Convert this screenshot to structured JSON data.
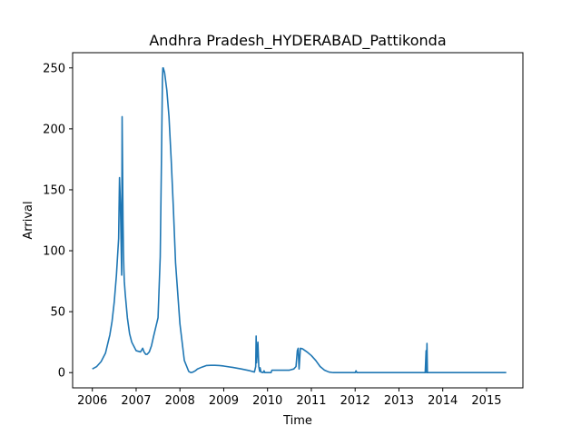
{
  "chart_data": {
    "type": "line",
    "title": "Andhra Pradesh_HYDERABAD_Pattikonda",
    "xlabel": "Time",
    "ylabel": "Arrival",
    "x_ticks": [
      "2006",
      "2007",
      "2008",
      "2009",
      "2010",
      "2011",
      "2012",
      "2013",
      "2014",
      "2015"
    ],
    "y_ticks": [
      0,
      50,
      100,
      150,
      200,
      250
    ],
    "xlim": [
      2005.55,
      2015.83
    ],
    "ylim": [
      -12.5,
      262.5
    ],
    "grid": false,
    "line_color": "#1f77b4",
    "series": [
      {
        "x": [
          2006.0,
          2006.1,
          2006.2,
          2006.3,
          2006.4,
          2006.45,
          2006.5,
          2006.55,
          2006.6,
          2006.62,
          2006.64,
          2006.66,
          2006.67,
          2006.68,
          2006.69,
          2006.7,
          2006.71,
          2006.72,
          2006.73,
          2006.75,
          2006.8,
          2006.85,
          2006.9,
          2007.0,
          2007.1,
          2007.15,
          2007.18,
          2007.2,
          2007.22,
          2007.25,
          2007.3,
          2007.35,
          2007.4,
          2007.5,
          2007.55,
          2007.58,
          2007.6,
          2007.61,
          2007.62,
          2007.65,
          2007.7,
          2007.75,
          2007.8,
          2007.85,
          2007.9,
          2008.0,
          2008.1,
          2008.2,
          2008.25,
          2008.3,
          2008.35,
          2008.4,
          2008.5,
          2008.6,
          2008.7,
          2008.8,
          2008.9,
          2009.0,
          2009.2,
          2009.4,
          2009.6,
          2009.7,
          2009.73,
          2009.74,
          2009.75,
          2009.78,
          2009.8,
          2009.81,
          2009.82,
          2009.83,
          2009.85,
          2009.9,
          2009.92,
          2009.94,
          2010.0,
          2010.08,
          2010.1,
          2010.3,
          2010.5,
          2010.6,
          2010.65,
          2010.68,
          2010.7,
          2010.72,
          2010.75,
          2010.8,
          2010.9,
          2011.0,
          2011.1,
          2011.2,
          2011.3,
          2011.4,
          2011.5,
          2012.0,
          2012.02,
          2012.04,
          2012.5,
          2013.0,
          2013.5,
          2013.55,
          2013.6,
          2013.62,
          2013.63,
          2013.64,
          2013.65,
          2013.67,
          2013.7,
          2014.0,
          2014.5,
          2015.0,
          2015.45
        ],
        "y": [
          3,
          5,
          9,
          16,
          31,
          42,
          58,
          80,
          110,
          160,
          140,
          100,
          80,
          210,
          170,
          125,
          100,
          85,
          75,
          65,
          45,
          32,
          25,
          18,
          17,
          20,
          17,
          16,
          15,
          15,
          17,
          22,
          30,
          45,
          95,
          180,
          240,
          250,
          250,
          246,
          232,
          210,
          175,
          135,
          90,
          40,
          10,
          1,
          0,
          0.5,
          1.5,
          3,
          4.5,
          5.8,
          6,
          6,
          5.8,
          5.4,
          4.3,
          3,
          1.5,
          0.5,
          5,
          30,
          8,
          25,
          5,
          3,
          1,
          4,
          0.5,
          0,
          1.5,
          0,
          0,
          0,
          2,
          2,
          2,
          3,
          5,
          18,
          20,
          3,
          20,
          19.5,
          17,
          14,
          10,
          5,
          2,
          0.5,
          0,
          0,
          1.5,
          0,
          0,
          0,
          0,
          0,
          0,
          18,
          0,
          24,
          0,
          0,
          0,
          0,
          0,
          0,
          0
        ]
      }
    ]
  }
}
